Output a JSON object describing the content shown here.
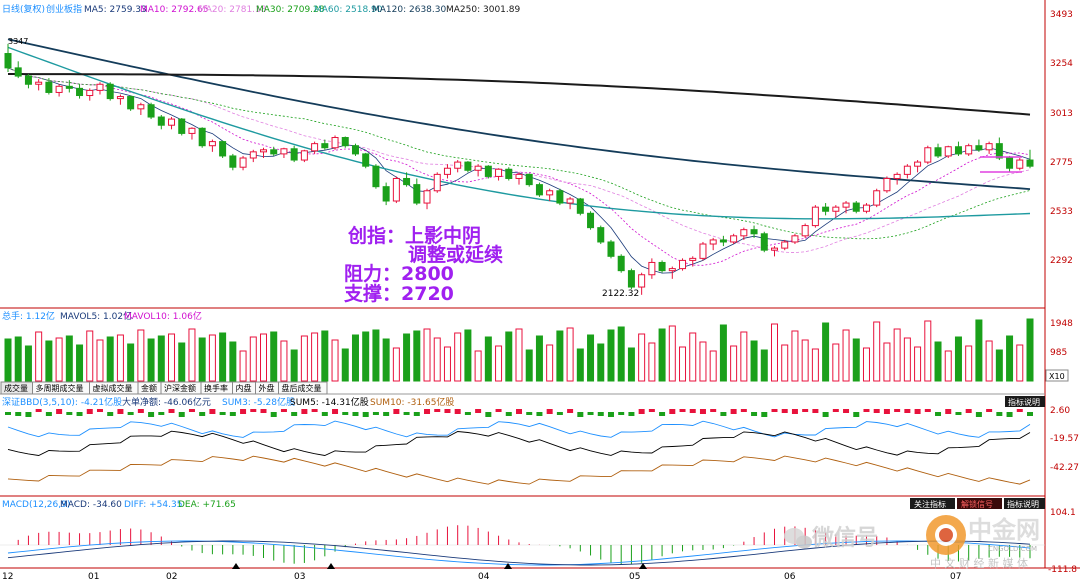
{
  "main_header": {
    "title": "日线(复权)",
    "instrument": "创业板指",
    "ma5_label": "MA5: 2759.33",
    "ma10_label": "MA10: 2792.65",
    "ma20_label": "MA20: 2781.18",
    "ma30_label": "MA30: 2709.28",
    "ma60_label": "MA60: 2518.90",
    "ma120_label": "MA120: 2638.30",
    "ma250_label": "MA250: 3001.89"
  },
  "price_axis": [
    "3493",
    "3254",
    "3013",
    "2775",
    "2533",
    "2292"
  ],
  "price_markers": {
    "low": "2122.32",
    "high": "3347"
  },
  "annotation": {
    "line1": "创指：上影中阴",
    "line2": "调整或延续",
    "resistance": "阻力：2800",
    "support": "支撑：2720"
  },
  "volume_header": {
    "label": "总手: 1.12亿",
    "mavol5": "MAVOL5: 1.02亿",
    "mavol10": "MAVOL10: 1.06亿"
  },
  "volume_axis": [
    "1948",
    "985"
  ],
  "volume_unit": "X10",
  "tabs": [
    "成交量",
    "多周期成交量",
    "虚拟成交量",
    "金额",
    "沪深金额",
    "换手率",
    "内盘",
    "外盘",
    "盘后成交量"
  ],
  "bbd_header": {
    "label": "深证BBD(3,5,10): -4.21亿股",
    "big_net": "大单净额: -46.06亿元",
    "sum3": "SUM3: -5.28亿股",
    "sum5": "SUM5: -14.31亿股",
    "sum10": "SUM10: -31.65亿股"
  },
  "bbd_axis": [
    "2.60",
    "-19.57",
    "-42.27"
  ],
  "bbd_button": "指标说明",
  "macd_header": {
    "label": "MACD(12,26,9)",
    "macd": "MACD: -34.60",
    "diff": "DIFF: +54.35",
    "dea": "DEA: +71.65"
  },
  "macd_axis": [
    "104.1",
    "-111.8"
  ],
  "macd_buttons": [
    "关注指标",
    "解锁信号",
    "指标说明"
  ],
  "x_axis": [
    "12",
    "01",
    "02",
    "03",
    "04",
    "05",
    "06",
    "07"
  ],
  "watermark": {
    "brand": "微信号",
    "site": "CNGOLD.COM",
    "name": "中金网",
    "slogan": "中 文 财 经 新 媒 体"
  },
  "colors": {
    "up": "#e8123c",
    "down": "#1aa01a",
    "ma250": "#1a1a1a",
    "ma120": "#143c5a",
    "ma60": "#1e9aa0",
    "annotation": "#a020f0",
    "ma_line_magenta": "#e040e0"
  },
  "chart_data": {
    "type": "candlestick",
    "title": "创业板指 日线(复权)",
    "candles": [
      [
        3300,
        3347,
        3210,
        3230
      ],
      [
        3230,
        3262,
        3180,
        3190
      ],
      [
        3190,
        3200,
        3130,
        3150
      ],
      [
        3150,
        3175,
        3120,
        3160
      ],
      [
        3160,
        3180,
        3100,
        3110
      ],
      [
        3110,
        3150,
        3090,
        3140
      ],
      [
        3140,
        3170,
        3110,
        3130
      ],
      [
        3130,
        3150,
        3080,
        3095
      ],
      [
        3095,
        3130,
        3070,
        3120
      ],
      [
        3120,
        3160,
        3100,
        3150
      ],
      [
        3150,
        3160,
        3070,
        3080
      ],
      [
        3080,
        3100,
        3050,
        3090
      ],
      [
        3090,
        3095,
        3020,
        3030
      ],
      [
        3030,
        3060,
        3000,
        3050
      ],
      [
        3050,
        3060,
        2980,
        2990
      ],
      [
        2990,
        3000,
        2930,
        2950
      ],
      [
        2950,
        2990,
        2930,
        2980
      ],
      [
        2980,
        2985,
        2900,
        2910
      ],
      [
        2910,
        2940,
        2880,
        2935
      ],
      [
        2935,
        2940,
        2840,
        2850
      ],
      [
        2850,
        2880,
        2820,
        2870
      ],
      [
        2870,
        2875,
        2790,
        2800
      ],
      [
        2800,
        2810,
        2730,
        2745
      ],
      [
        2745,
        2800,
        2730,
        2790
      ],
      [
        2790,
        2830,
        2770,
        2820
      ],
      [
        2820,
        2840,
        2790,
        2830
      ],
      [
        2830,
        2845,
        2800,
        2810
      ],
      [
        2810,
        2840,
        2790,
        2835
      ],
      [
        2835,
        2850,
        2770,
        2780
      ],
      [
        2780,
        2830,
        2770,
        2825
      ],
      [
        2825,
        2870,
        2810,
        2860
      ],
      [
        2860,
        2880,
        2830,
        2840
      ],
      [
        2840,
        2900,
        2830,
        2890
      ],
      [
        2890,
        2895,
        2840,
        2850
      ],
      [
        2850,
        2860,
        2800,
        2810
      ],
      [
        2810,
        2815,
        2740,
        2750
      ],
      [
        2750,
        2760,
        2640,
        2650
      ],
      [
        2650,
        2670,
        2560,
        2580
      ],
      [
        2580,
        2700,
        2570,
        2690
      ],
      [
        2690,
        2720,
        2650,
        2660
      ],
      [
        2660,
        2690,
        2560,
        2570
      ],
      [
        2570,
        2640,
        2540,
        2630
      ],
      [
        2630,
        2720,
        2620,
        2710
      ],
      [
        2710,
        2760,
        2690,
        2740
      ],
      [
        2740,
        2780,
        2720,
        2770
      ],
      [
        2770,
        2775,
        2720,
        2730
      ],
      [
        2730,
        2760,
        2700,
        2750
      ],
      [
        2750,
        2755,
        2690,
        2700
      ],
      [
        2700,
        2740,
        2680,
        2735
      ],
      [
        2735,
        2745,
        2680,
        2690
      ],
      [
        2690,
        2720,
        2660,
        2710
      ],
      [
        2710,
        2715,
        2650,
        2660
      ],
      [
        2660,
        2670,
        2600,
        2610
      ],
      [
        2610,
        2640,
        2580,
        2630
      ],
      [
        2630,
        2640,
        2560,
        2570
      ],
      [
        2570,
        2600,
        2540,
        2590
      ],
      [
        2590,
        2595,
        2510,
        2520
      ],
      [
        2520,
        2530,
        2440,
        2450
      ],
      [
        2450,
        2460,
        2370,
        2380
      ],
      [
        2380,
        2390,
        2300,
        2310
      ],
      [
        2310,
        2320,
        2230,
        2240
      ],
      [
        2240,
        2250,
        2150,
        2160
      ],
      [
        2160,
        2230,
        2122,
        2220
      ],
      [
        2220,
        2300,
        2200,
        2280
      ],
      [
        2280,
        2290,
        2230,
        2240
      ],
      [
        2240,
        2260,
        2200,
        2250
      ],
      [
        2250,
        2300,
        2240,
        2290
      ],
      [
        2290,
        2310,
        2260,
        2300
      ],
      [
        2300,
        2380,
        2290,
        2370
      ],
      [
        2370,
        2400,
        2340,
        2390
      ],
      [
        2390,
        2410,
        2360,
        2380
      ],
      [
        2380,
        2420,
        2370,
        2410
      ],
      [
        2410,
        2450,
        2390,
        2440
      ],
      [
        2440,
        2460,
        2400,
        2420
      ],
      [
        2420,
        2430,
        2330,
        2340
      ],
      [
        2340,
        2360,
        2310,
        2350
      ],
      [
        2350,
        2390,
        2340,
        2380
      ],
      [
        2380,
        2420,
        2370,
        2410
      ],
      [
        2410,
        2470,
        2400,
        2460
      ],
      [
        2460,
        2560,
        2450,
        2550
      ],
      [
        2550,
        2570,
        2510,
        2530
      ],
      [
        2530,
        2560,
        2500,
        2550
      ],
      [
        2550,
        2580,
        2520,
        2570
      ],
      [
        2570,
        2580,
        2520,
        2530
      ],
      [
        2530,
        2570,
        2520,
        2560
      ],
      [
        2560,
        2640,
        2550,
        2630
      ],
      [
        2630,
        2700,
        2620,
        2690
      ],
      [
        2690,
        2720,
        2660,
        2710
      ],
      [
        2710,
        2760,
        2690,
        2750
      ],
      [
        2750,
        2780,
        2720,
        2770
      ],
      [
        2770,
        2850,
        2760,
        2840
      ],
      [
        2840,
        2860,
        2790,
        2800
      ],
      [
        2800,
        2850,
        2790,
        2845
      ],
      [
        2845,
        2870,
        2800,
        2810
      ],
      [
        2810,
        2860,
        2800,
        2850
      ],
      [
        2850,
        2880,
        2820,
        2830
      ],
      [
        2830,
        2870,
        2810,
        2860
      ],
      [
        2860,
        2890,
        2780,
        2790
      ],
      [
        2790,
        2800,
        2720,
        2740
      ],
      [
        2740,
        2790,
        2730,
        2780
      ],
      [
        2780,
        2830,
        2740,
        2750
      ]
    ],
    "x_ticks": [
      "12",
      "01",
      "02",
      "03",
      "04",
      "05",
      "06",
      "07"
    ],
    "y_range": [
      2080,
      3560
    ],
    "resistance": 2800,
    "support": 2720,
    "low_point": 2122.32
  }
}
